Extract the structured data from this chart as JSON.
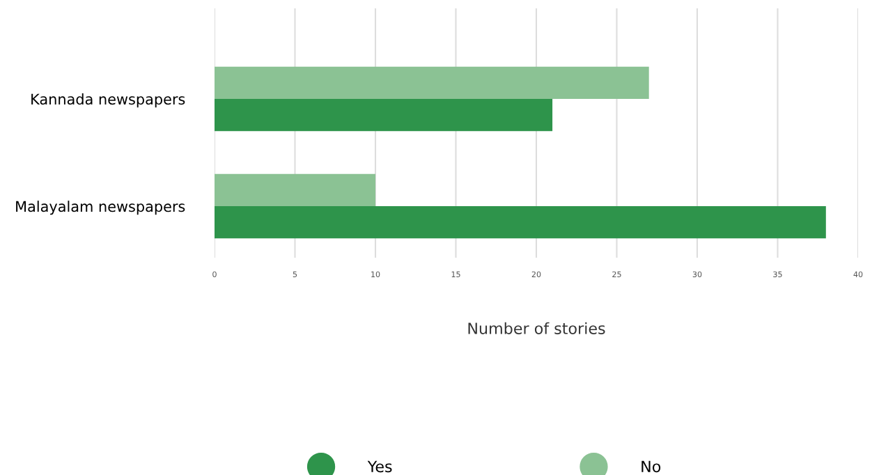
{
  "chart_data": {
    "type": "bar",
    "orientation": "horizontal",
    "xlabel": "Number of stories",
    "categories": [
      "Kannada newspapers",
      "Malayalam newspapers"
    ],
    "series": [
      {
        "name": "Yes",
        "color": "#2e944b",
        "values": [
          21,
          38
        ]
      },
      {
        "name": "No",
        "color": "#8bc294",
        "values": [
          27,
          10
        ]
      }
    ],
    "xlim": [
      0,
      40
    ],
    "xticks": [
      0,
      5,
      10,
      15,
      20,
      25,
      30,
      35,
      40
    ],
    "grid": "x",
    "legend": "bottom"
  }
}
